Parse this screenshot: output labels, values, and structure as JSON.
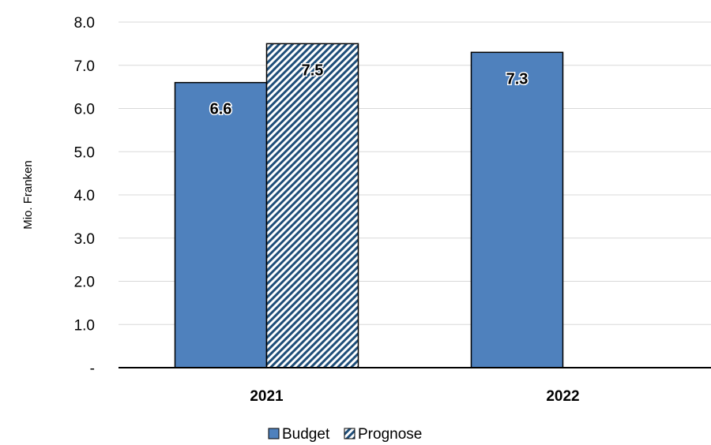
{
  "chart_data": {
    "type": "bar",
    "categories": [
      "2021",
      "2022"
    ],
    "series": [
      {
        "name": "Budget",
        "values": [
          6.6,
          7.3
        ],
        "color": "#4f81bd",
        "pattern": "solid"
      },
      {
        "name": "Prognose",
        "values": [
          7.5,
          null
        ],
        "color": "#1f4e79",
        "pattern": "diagonal-hatch"
      }
    ],
    "data_labels": [
      [
        "6.6",
        "7.3"
      ],
      [
        "7.5",
        ""
      ]
    ],
    "ylabel": "Mio. Franken",
    "ylim": [
      0,
      8
    ],
    "yticks": [
      0,
      1,
      2,
      3,
      4,
      5,
      6,
      7,
      8
    ],
    "ytick_labels": [
      "-",
      "1.0",
      "2.0",
      "3.0",
      "4.0",
      "5.0",
      "6.0",
      "7.0",
      "8.0"
    ],
    "grid": true,
    "legend_position": "bottom"
  }
}
